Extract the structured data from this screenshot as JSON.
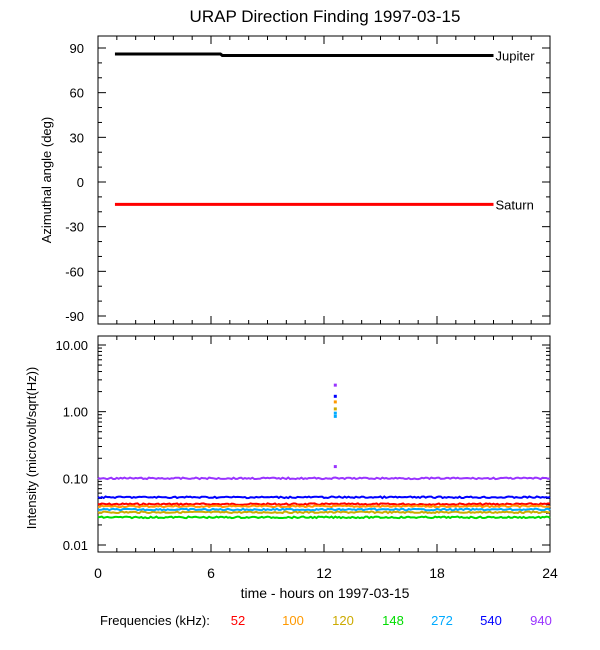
{
  "chart_data": [
    {
      "type": "line",
      "title": "URAP Direction Finding  1997-03-15",
      "ylabel": "Azimuthal angle (deg)",
      "xlim": [
        0,
        24
      ],
      "ylim": [
        -90,
        90
      ],
      "yticks": [
        90,
        60,
        30,
        0,
        -30,
        -60,
        -90
      ],
      "series": [
        {
          "name": "Jupiter",
          "color": "#000000",
          "x": [
            0.9,
            6.5,
            6.6,
            21.0
          ],
          "values": [
            86,
            86,
            85,
            85
          ]
        },
        {
          "name": "Saturn",
          "color": "#ff0000",
          "x": [
            0.9,
            21.0
          ],
          "values": [
            -15,
            -15
          ]
        }
      ]
    },
    {
      "type": "scatter",
      "ylabel": "Intensity (microvolt/sqrt(Hz))",
      "xlabel": "time - hours on 1997-03-15",
      "xlim": [
        0,
        24
      ],
      "xticks": [
        0,
        6,
        12,
        18,
        24
      ],
      "ylim": [
        0.01,
        10
      ],
      "yscale": "log",
      "yticks": [
        10.0,
        1.0,
        0.1,
        0.01
      ],
      "ytick_labels": [
        "10.00",
        "1.00",
        "0.10",
        "0.01"
      ],
      "legend_title": "Frequencies (kHz):",
      "series": [
        {
          "name": "52",
          "color": "#ff0000",
          "level": 0.041
        },
        {
          "name": "100",
          "color": "#ff9900",
          "level": 0.038
        },
        {
          "name": "120",
          "color": "#ccaa00",
          "level": 0.031
        },
        {
          "name": "148",
          "color": "#00dd00",
          "level": 0.026
        },
        {
          "name": "272",
          "color": "#00aaff",
          "level": 0.034
        },
        {
          "name": "540",
          "color": "#0000ff",
          "level": 0.052
        },
        {
          "name": "940",
          "color": "#9933ff",
          "level": 0.1
        }
      ],
      "spike": {
        "x": 12.6,
        "points": [
          {
            "series": "940",
            "value": 2.5
          },
          {
            "series": "940",
            "value": 0.15
          },
          {
            "series": "540",
            "value": 1.7
          },
          {
            "series": "100",
            "value": 1.4
          },
          {
            "series": "120",
            "value": 1.1
          },
          {
            "series": "272",
            "value": 0.95
          },
          {
            "series": "272",
            "value": 0.85
          }
        ]
      }
    }
  ]
}
